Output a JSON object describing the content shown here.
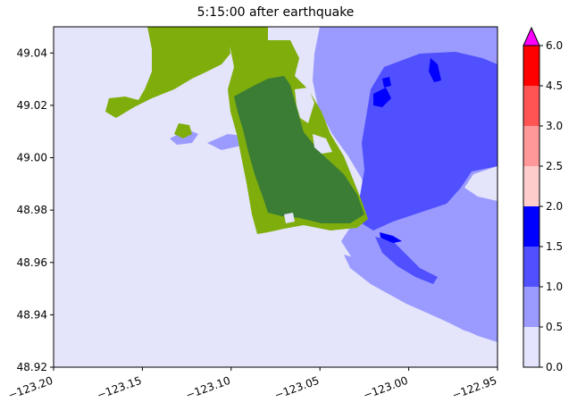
{
  "title": "5:15:00 after earthquake",
  "map": {
    "x_ticks": [
      "−123.20",
      "−123.15",
      "−123.10",
      "−123.05",
      "−123.00",
      "−122.95"
    ],
    "y_ticks": [
      "48.92",
      "48.94",
      "48.96",
      "48.98",
      "49.00",
      "49.02",
      "49.04"
    ],
    "xlim": [
      -123.2,
      -122.95
    ],
    "ylim": [
      48.92,
      49.05
    ],
    "background_color": "#e4e4fb",
    "land_colors": {
      "dark": "#3b7d34",
      "light": "#7fae0c"
    }
  },
  "colorbar": {
    "tick_labels": [
      "0.0",
      "0.5",
      "1.0",
      "1.5",
      "2.0",
      "2.5",
      "3.0",
      "4.5",
      "6.0"
    ],
    "levels": [
      0.0,
      0.5,
      1.0,
      1.5,
      2.0,
      2.5,
      3.0,
      4.5,
      6.0
    ],
    "colors": [
      "#e4e4ff",
      "#9b9bff",
      "#5050ff",
      "#0000ff",
      "#ffcccc",
      "#ff9999",
      "#ff5454",
      "#ff0000"
    ],
    "extend_color": "#ff00ff"
  }
}
